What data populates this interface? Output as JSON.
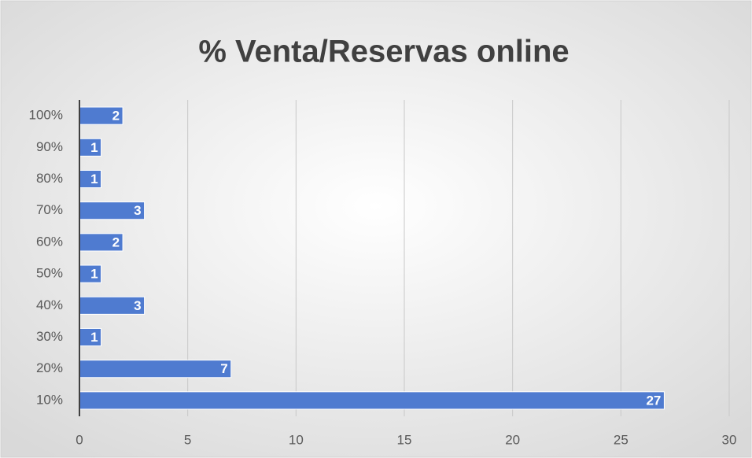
{
  "chart_data": {
    "type": "hbar",
    "title": "% Venta/Reservas online",
    "categories": [
      "10%",
      "20%",
      "30%",
      "40%",
      "50%",
      "60%",
      "70%",
      "80%",
      "90%",
      "100%"
    ],
    "values": [
      27,
      7,
      1,
      3,
      1,
      2,
      3,
      1,
      1,
      2
    ],
    "color": "#4f7bd0",
    "xlim": [
      0,
      30
    ],
    "xticks": [
      0,
      5,
      10,
      15,
      20,
      25,
      30
    ],
    "grid": true
  }
}
